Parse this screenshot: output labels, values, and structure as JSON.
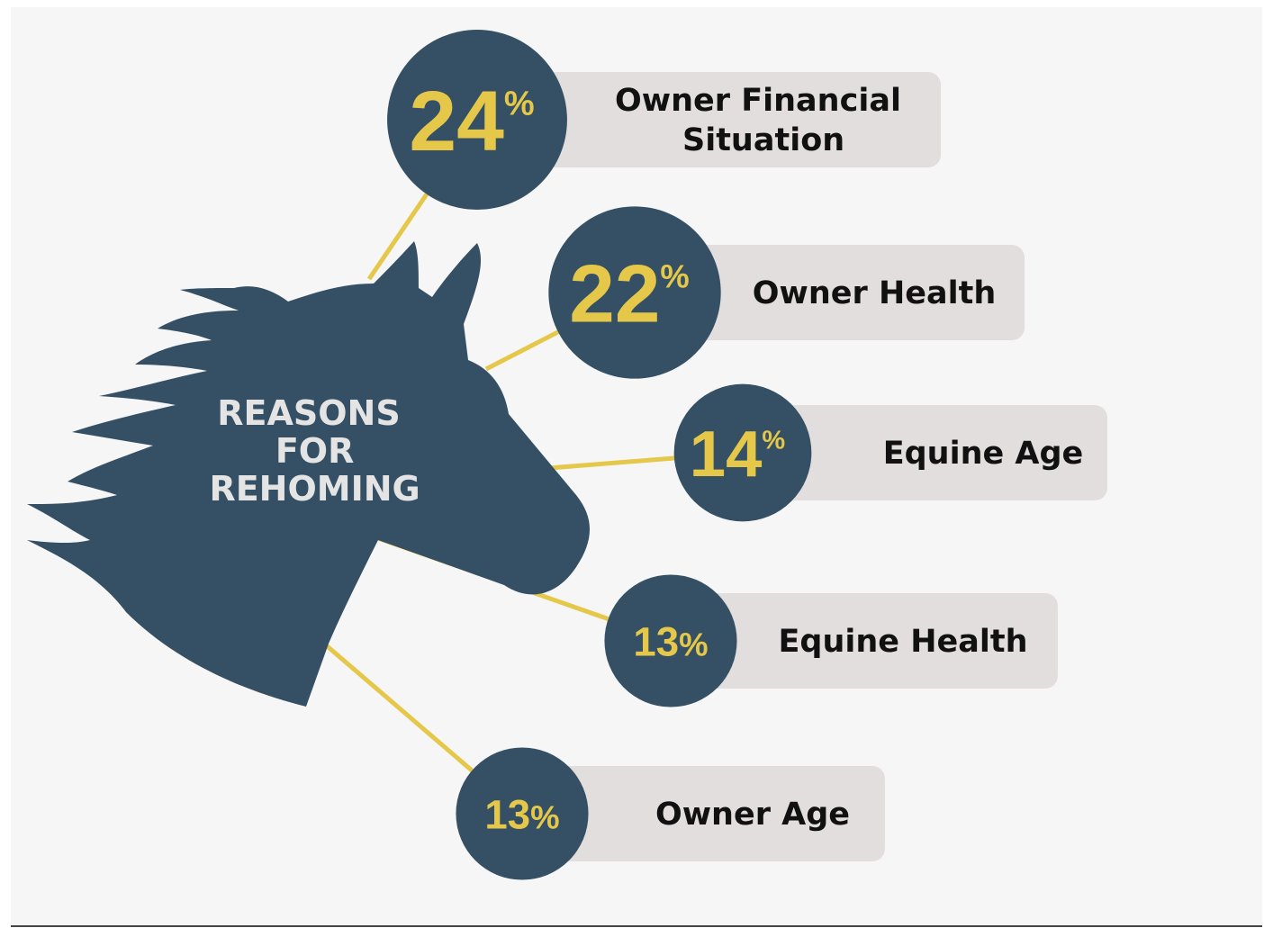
{
  "chart_data": {
    "type": "infographic",
    "title": "REASONS FOR REHOMING",
    "categories": [
      "Owner Financial Situation",
      "Owner Health",
      "Equine Age",
      "Equine Health",
      "Owner Age"
    ],
    "values": [
      24,
      22,
      14,
      13,
      13
    ],
    "value_labels": [
      "24%",
      "22%",
      "14%",
      "13%",
      "13%"
    ],
    "color": "#355064",
    "accent": "#e5c84a"
  }
}
